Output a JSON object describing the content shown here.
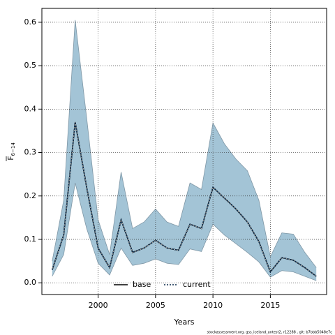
{
  "chart_data": {
    "type": "line",
    "xlabel": "Years",
    "ylabel": "F",
    "ylabel_subscript": "6−14",
    "footnote": "stockassessment.org, gss_iceland_antest2, r12288 , git: b7bbb5048e7c",
    "x": [
      1996,
      1997,
      1998,
      1999,
      2000,
      2001,
      2002,
      2003,
      2004,
      2005,
      2006,
      2007,
      2008,
      2009,
      2010,
      2011,
      2012,
      2013,
      2014,
      2015,
      2016,
      2017,
      2018,
      2019
    ],
    "series": [
      {
        "name": "base",
        "color": "#000000",
        "style": "solid",
        "values": [
          0.03,
          0.11,
          0.37,
          0.22,
          0.08,
          0.035,
          0.145,
          0.07,
          0.08,
          0.098,
          0.08,
          0.075,
          0.135,
          0.125,
          0.22,
          0.195,
          0.17,
          0.14,
          0.095,
          0.025,
          0.058,
          0.052,
          0.035,
          0.015
        ]
      },
      {
        "name": "current",
        "color": "#0a2a4a",
        "style": "dotted",
        "values": [
          0.03,
          0.11,
          0.37,
          0.22,
          0.08,
          0.035,
          0.145,
          0.07,
          0.08,
          0.098,
          0.08,
          0.075,
          0.135,
          0.125,
          0.22,
          0.195,
          0.17,
          0.14,
          0.095,
          0.025,
          0.058,
          0.052,
          0.035,
          0.015
        ]
      }
    ],
    "band": {
      "color": "#a3c4d6",
      "edge_color": "#7f97a6",
      "upper": [
        0.05,
        0.19,
        0.605,
        0.38,
        0.145,
        0.065,
        0.255,
        0.125,
        0.14,
        0.17,
        0.14,
        0.13,
        0.23,
        0.215,
        0.368,
        0.32,
        0.285,
        0.258,
        0.19,
        0.06,
        0.115,
        0.112,
        0.07,
        0.035
      ],
      "lower": [
        0.015,
        0.065,
        0.23,
        0.125,
        0.045,
        0.018,
        0.08,
        0.04,
        0.045,
        0.055,
        0.045,
        0.042,
        0.078,
        0.072,
        0.135,
        0.11,
        0.09,
        0.07,
        0.048,
        0.013,
        0.028,
        0.025,
        0.015,
        0.005
      ]
    },
    "xlim": [
      1995.1,
      2019.9
    ],
    "xticks": [
      2000,
      2005,
      2010,
      2015
    ],
    "ylim": [
      -0.027,
      0.632
    ],
    "yticks": [
      {
        "value": 0,
        "label": "0.0"
      },
      0.1,
      0.2,
      0.3,
      0.4,
      0.5,
      0.6
    ],
    "grid": true,
    "legend": "bottom"
  }
}
